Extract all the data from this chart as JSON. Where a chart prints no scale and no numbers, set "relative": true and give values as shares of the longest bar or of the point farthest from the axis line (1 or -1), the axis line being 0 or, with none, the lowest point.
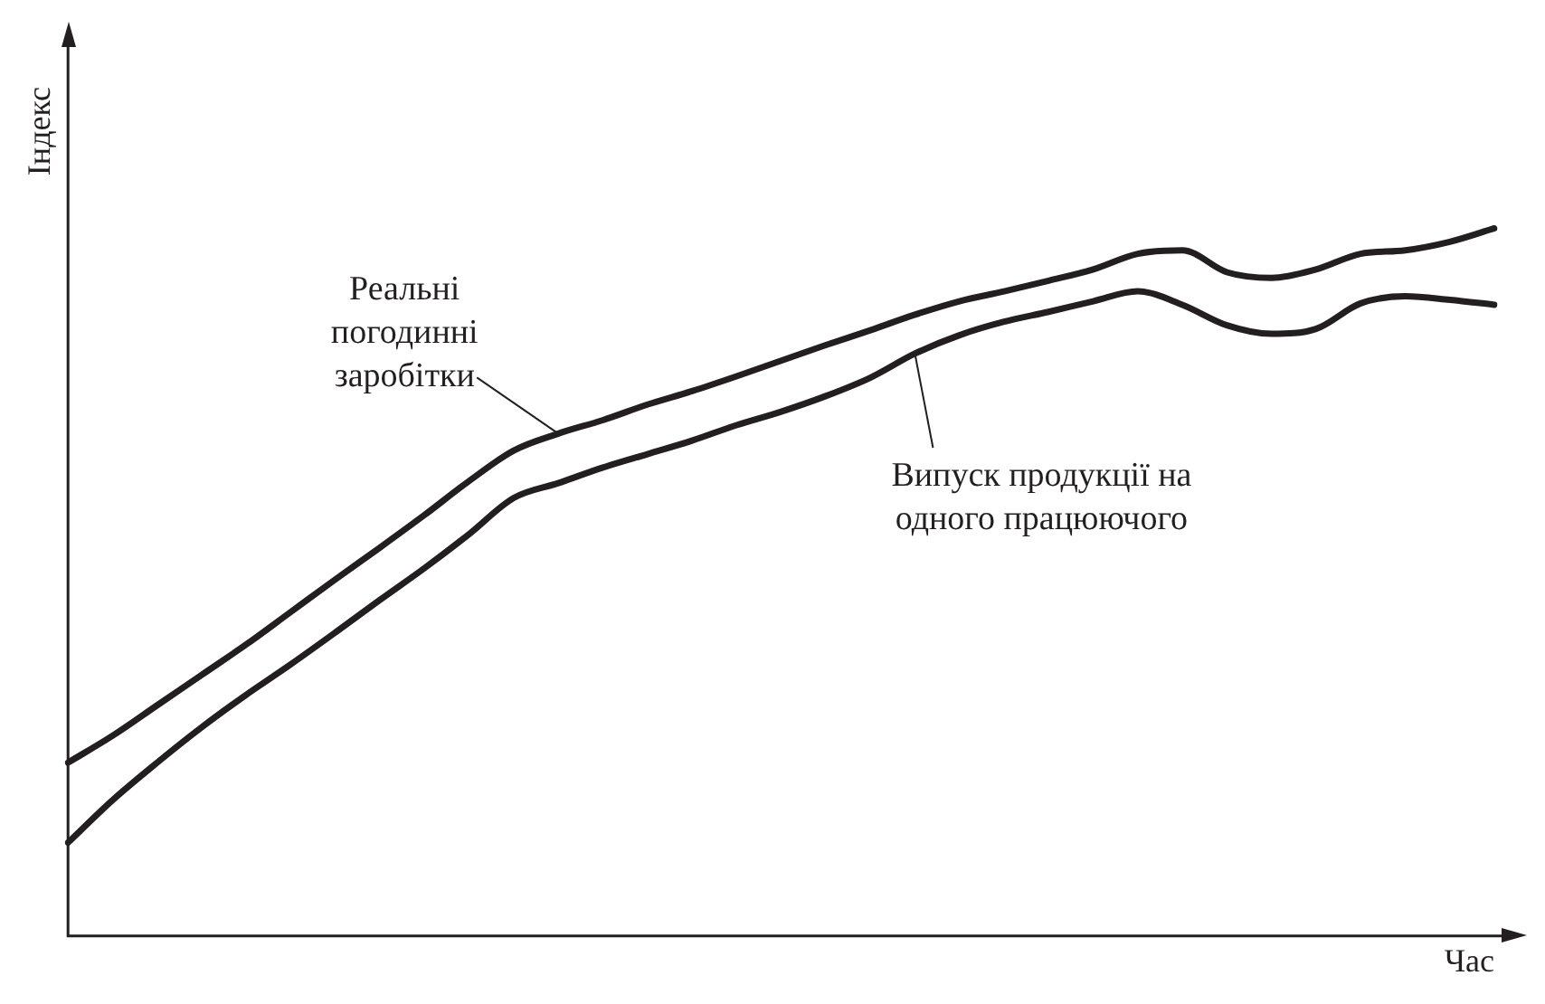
{
  "chart_data": {
    "type": "line",
    "relative": true,
    "xlabel": "Час",
    "ylabel": "Індекс",
    "grid": false,
    "legend": false,
    "marker": "none",
    "line_style": "solid",
    "categories": [
      null,
      null,
      null,
      null,
      null,
      null,
      null,
      null,
      null,
      null,
      null,
      null,
      null,
      null,
      null,
      null,
      null,
      null,
      null,
      null,
      null,
      null,
      null,
      null,
      null,
      null,
      null,
      null,
      null,
      null,
      null,
      null,
      null
    ],
    "series": [
      {
        "name": "Реальні погодинні заробітки",
        "color": "#231f20",
        "values": [
          0.245,
          0.283,
          0.326,
          0.369,
          0.412,
          0.458,
          0.504,
          0.549,
          0.595,
          0.643,
          0.686,
          0.71,
          0.729,
          0.751,
          0.77,
          0.791,
          0.813,
          0.835,
          0.856,
          0.878,
          0.897,
          0.911,
          0.926,
          0.942,
          0.964,
          0.969,
          0.938,
          0.93,
          0.942,
          0.964,
          0.969,
          0.981,
          1.0
        ]
      },
      {
        "name": "Випуск продукції на одного працюючого",
        "color": "#231f20",
        "values": [
          0.132,
          0.192,
          0.245,
          0.295,
          0.341,
          0.384,
          0.429,
          0.475,
          0.52,
          0.568,
          0.619,
          0.64,
          0.662,
          0.681,
          0.7,
          0.722,
          0.741,
          0.763,
          0.789,
          0.823,
          0.849,
          0.868,
          0.882,
          0.897,
          0.911,
          0.892,
          0.863,
          0.851,
          0.858,
          0.894,
          0.904,
          0.899,
          0.892
        ]
      }
    ]
  }
}
